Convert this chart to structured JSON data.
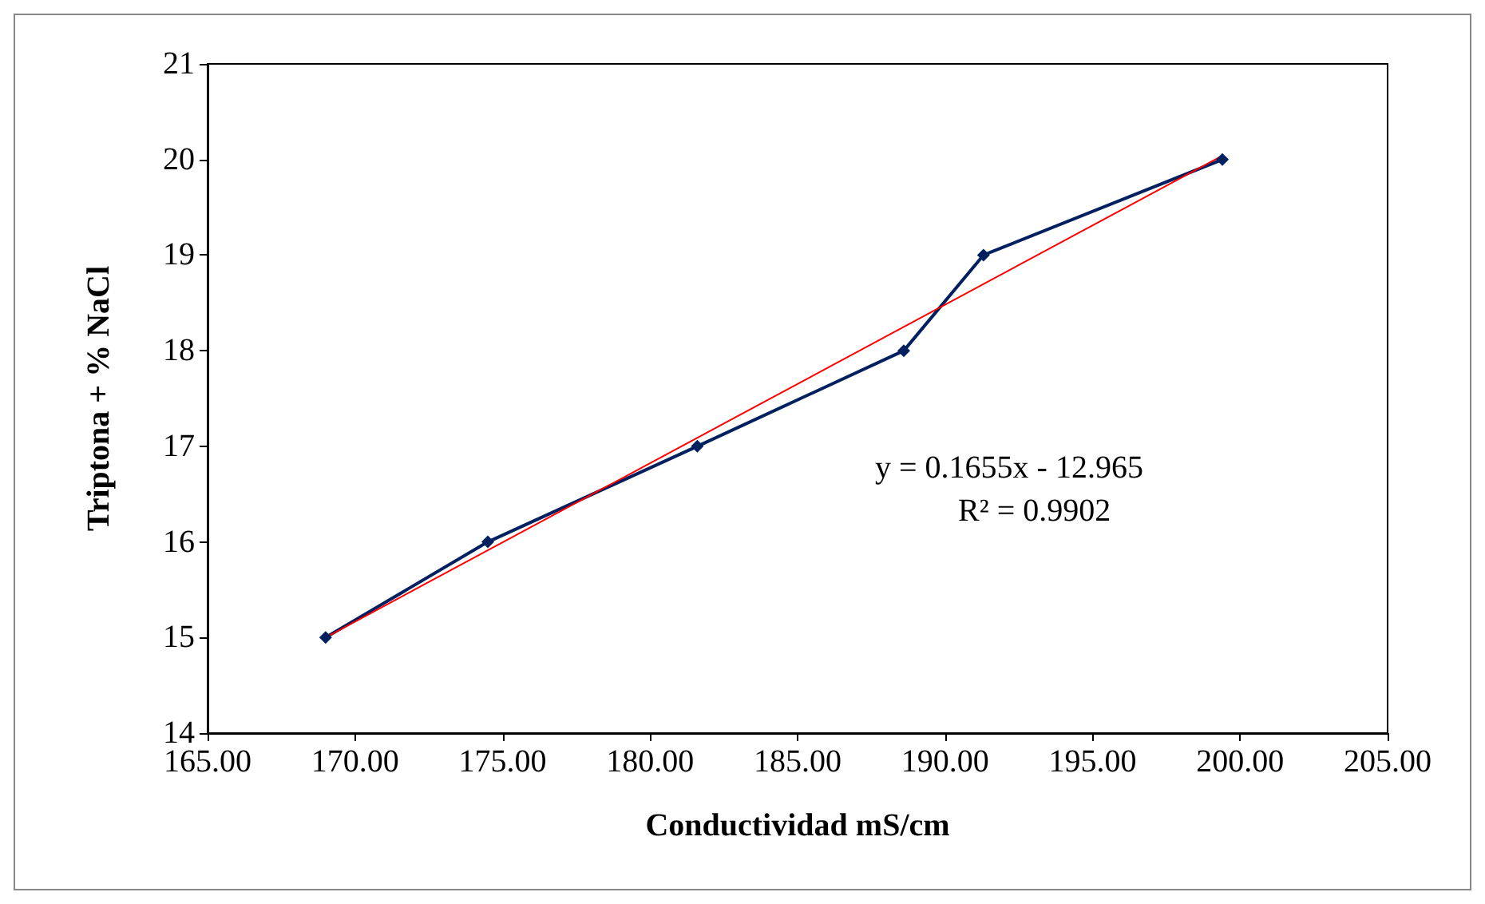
{
  "chart_data": {
    "type": "line",
    "xlabel": "Conductividad mS/cm",
    "ylabel": "Triptona + % NaCl",
    "xlim": [
      165,
      205
    ],
    "xticks": [
      {
        "value": 165,
        "label": "165.00"
      },
      {
        "value": 170,
        "label": "170.00"
      },
      {
        "value": 175,
        "label": "175.00"
      },
      {
        "value": 180,
        "label": "180.00"
      },
      {
        "value": 185,
        "label": "185.00"
      },
      {
        "value": 190,
        "label": "190.00"
      },
      {
        "value": 195,
        "label": "195.00"
      },
      {
        "value": 200,
        "label": "200.00"
      },
      {
        "value": 205,
        "label": "205.00"
      }
    ],
    "ylim": [
      14,
      21
    ],
    "yticks": [
      14,
      15,
      16,
      17,
      18,
      19,
      20,
      21
    ],
    "series": [
      {
        "color": "#002060",
        "x": [
          169.0,
          174.5,
          181.6,
          188.6,
          191.3,
          199.4
        ],
        "values": [
          15,
          16,
          17,
          18,
          19,
          20
        ],
        "marker": "diamond"
      },
      {
        "type": "line",
        "color": "#ff0000",
        "x": [
          169.0,
          199.4
        ],
        "values": [
          15.0,
          20.04
        ],
        "marker": "none"
      }
    ],
    "annotations": [
      "y = 0.1655x - 12.965",
      "R² = 0.9902"
    ],
    "grid": false,
    "line_style": "solid"
  }
}
